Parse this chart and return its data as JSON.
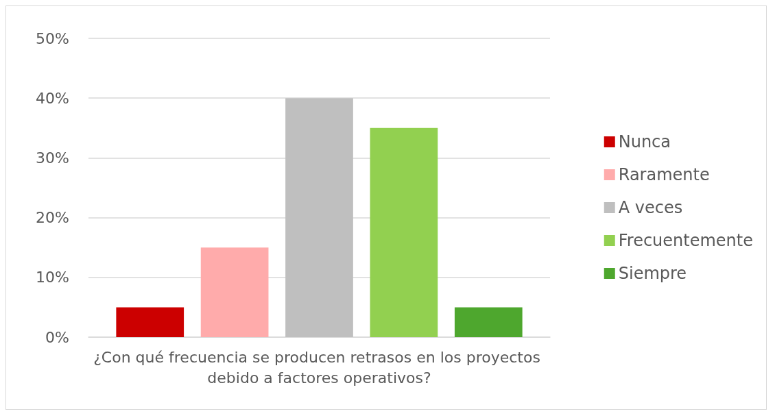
{
  "chart_data": {
    "type": "bar",
    "categories": [
      "¿Con qué frecuencia se producen retrasos en los proyectos debido a factores operativos?"
    ],
    "series": [
      {
        "name": "Nunca",
        "color": "#cc0000",
        "values": [
          5
        ]
      },
      {
        "name": "Raramente",
        "color": "#ffabab",
        "values": [
          15
        ]
      },
      {
        "name": "A veces",
        "color": "#bfbfbf",
        "values": [
          40
        ]
      },
      {
        "name": "Frecuentemente",
        "color": "#92d050",
        "values": [
          35
        ]
      },
      {
        "name": "Siempre",
        "color": "#4ea72e",
        "values": [
          5
        ]
      }
    ],
    "ylim": [
      0,
      50
    ],
    "yticks": [
      {
        "value": 0,
        "label": "0%"
      },
      {
        "value": 10,
        "label": "10%"
      },
      {
        "value": 20,
        "label": "20%"
      },
      {
        "value": 30,
        "label": "30%"
      },
      {
        "value": 40,
        "label": "40%"
      },
      {
        "value": 50,
        "label": "50%"
      }
    ],
    "grid": "y",
    "legend": "right"
  }
}
